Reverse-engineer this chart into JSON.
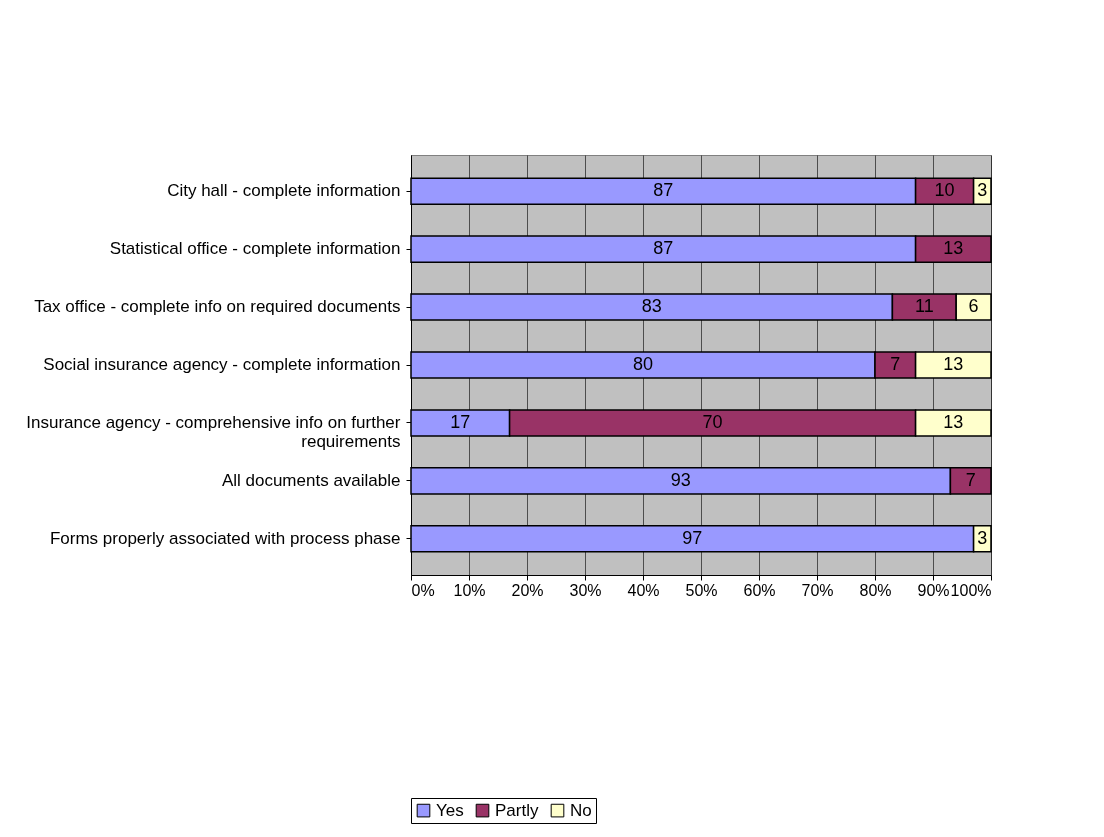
{
  "chart_data": {
    "type": "bar",
    "orientation": "horizontal",
    "stacked": true,
    "data_labels": true,
    "grid": "x",
    "legend": "bottom",
    "categories": [
      "City hall - complete information",
      "Statistical office - complete information",
      "Tax office - complete info on required documents",
      "Social insurance agency - complete information",
      "Insurance agency - comprehensive info on further requirements",
      "All documents available",
      "Forms properly associated with process phase"
    ],
    "series": [
      {
        "name": "Yes",
        "color": "#9999ff",
        "values": [
          87,
          87,
          83,
          80,
          17,
          93,
          97
        ]
      },
      {
        "name": "Partly",
        "color": "#993366",
        "values": [
          10,
          13,
          11,
          7,
          70,
          7,
          null
        ]
      },
      {
        "name": "No",
        "color": "#ffffcc",
        "values": [
          3,
          null,
          6,
          13,
          13,
          null,
          3
        ]
      }
    ],
    "xlim": [
      0,
      100
    ],
    "xticks": [
      {
        "value": 0,
        "label": "0%"
      },
      {
        "value": 10,
        "label": "10%"
      },
      {
        "value": 20,
        "label": "20%"
      },
      {
        "value": 30,
        "label": "30%"
      },
      {
        "value": 40,
        "label": "40%"
      },
      {
        "value": 50,
        "label": "50%"
      },
      {
        "value": 60,
        "label": "60%"
      },
      {
        "value": 70,
        "label": "70%"
      },
      {
        "value": 80,
        "label": "80%"
      },
      {
        "value": 90,
        "label": "90%"
      },
      {
        "value": 100,
        "label": "100%"
      }
    ]
  }
}
